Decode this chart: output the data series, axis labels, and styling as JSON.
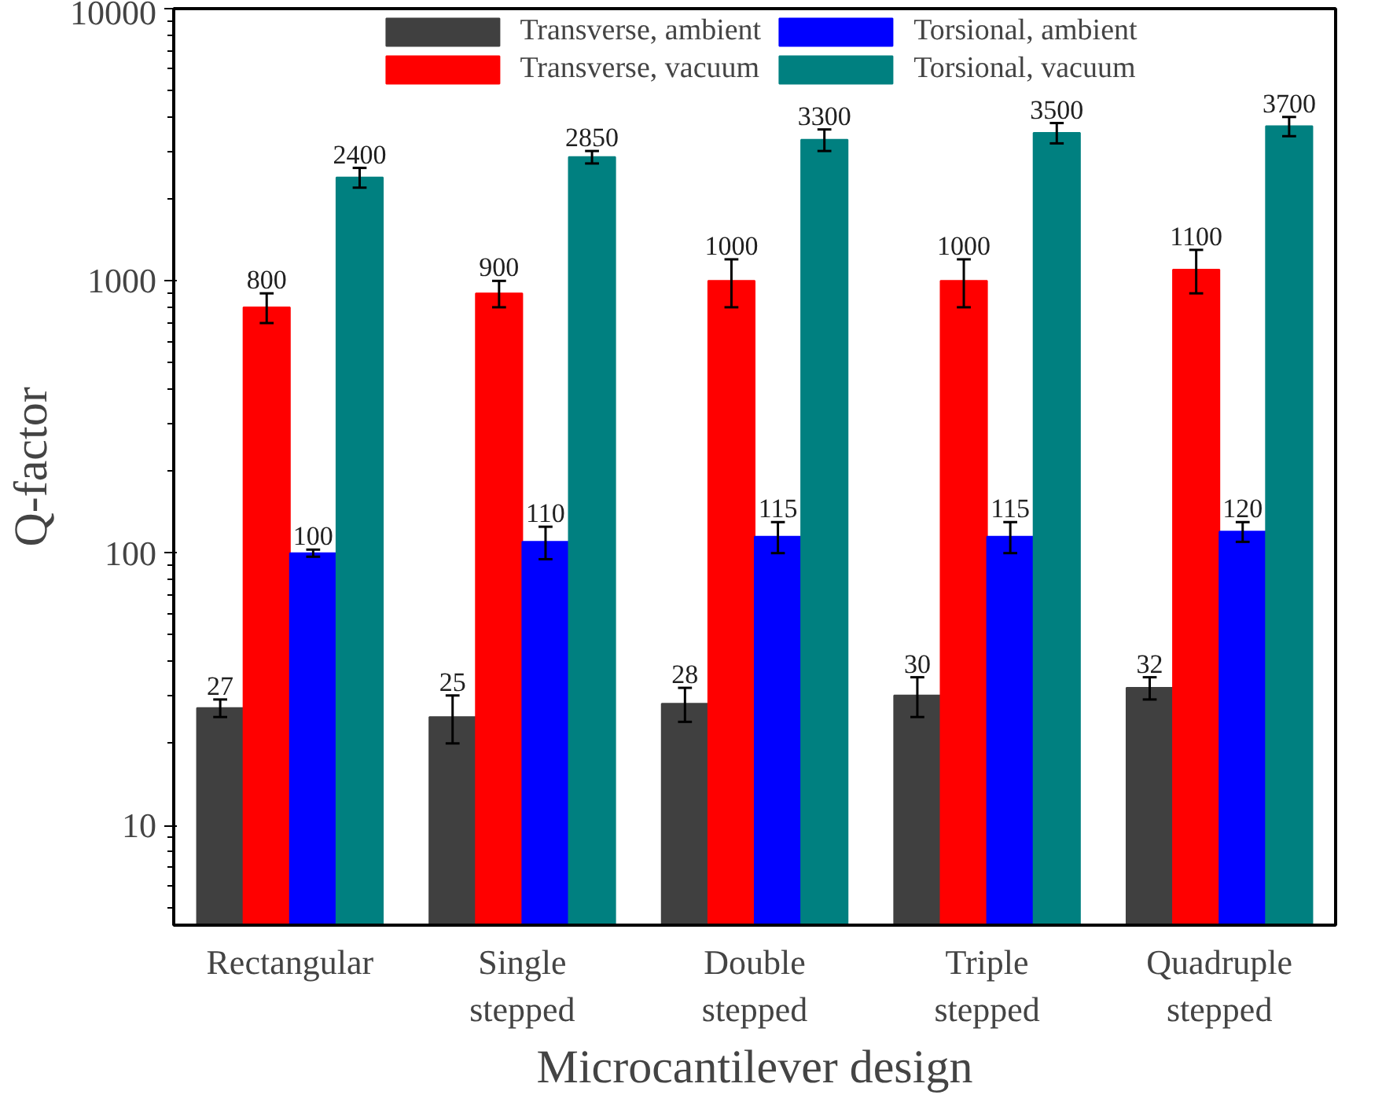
{
  "chart_data": {
    "type": "bar",
    "xlabel": "Microcantilever design",
    "ylabel": "Q-factor",
    "categories": [
      "Rectangular",
      "Single stepped",
      "Double stepped",
      "Triple stepped",
      "Quadruple stepped"
    ],
    "log": true,
    "ylim": [
      4.3,
      10000
    ],
    "yticks": [
      10,
      100,
      1000,
      10000
    ],
    "grid": false,
    "legend": "top",
    "data_labels": true,
    "series": [
      {
        "name": "Transverse, ambient",
        "color": "#404040",
        "values": [
          27,
          25,
          28,
          30,
          32
        ],
        "errors": [
          2,
          5,
          4,
          5,
          3
        ]
      },
      {
        "name": "Transverse, vacuum",
        "color": "#ff0000",
        "values": [
          800,
          900,
          1000,
          1000,
          1100
        ],
        "errors": [
          100,
          100,
          200,
          200,
          200
        ]
      },
      {
        "name": "Torsional, ambient",
        "color": "#0000ff",
        "values": [
          100,
          110,
          115,
          115,
          120
        ],
        "errors": [
          3,
          15,
          15,
          15,
          10
        ]
      },
      {
        "name": "Torsional, vacuum",
        "color": "#008080",
        "values": [
          2400,
          2850,
          3300,
          3500,
          3700
        ],
        "errors": [
          200,
          150,
          300,
          300,
          300
        ]
      }
    ]
  }
}
